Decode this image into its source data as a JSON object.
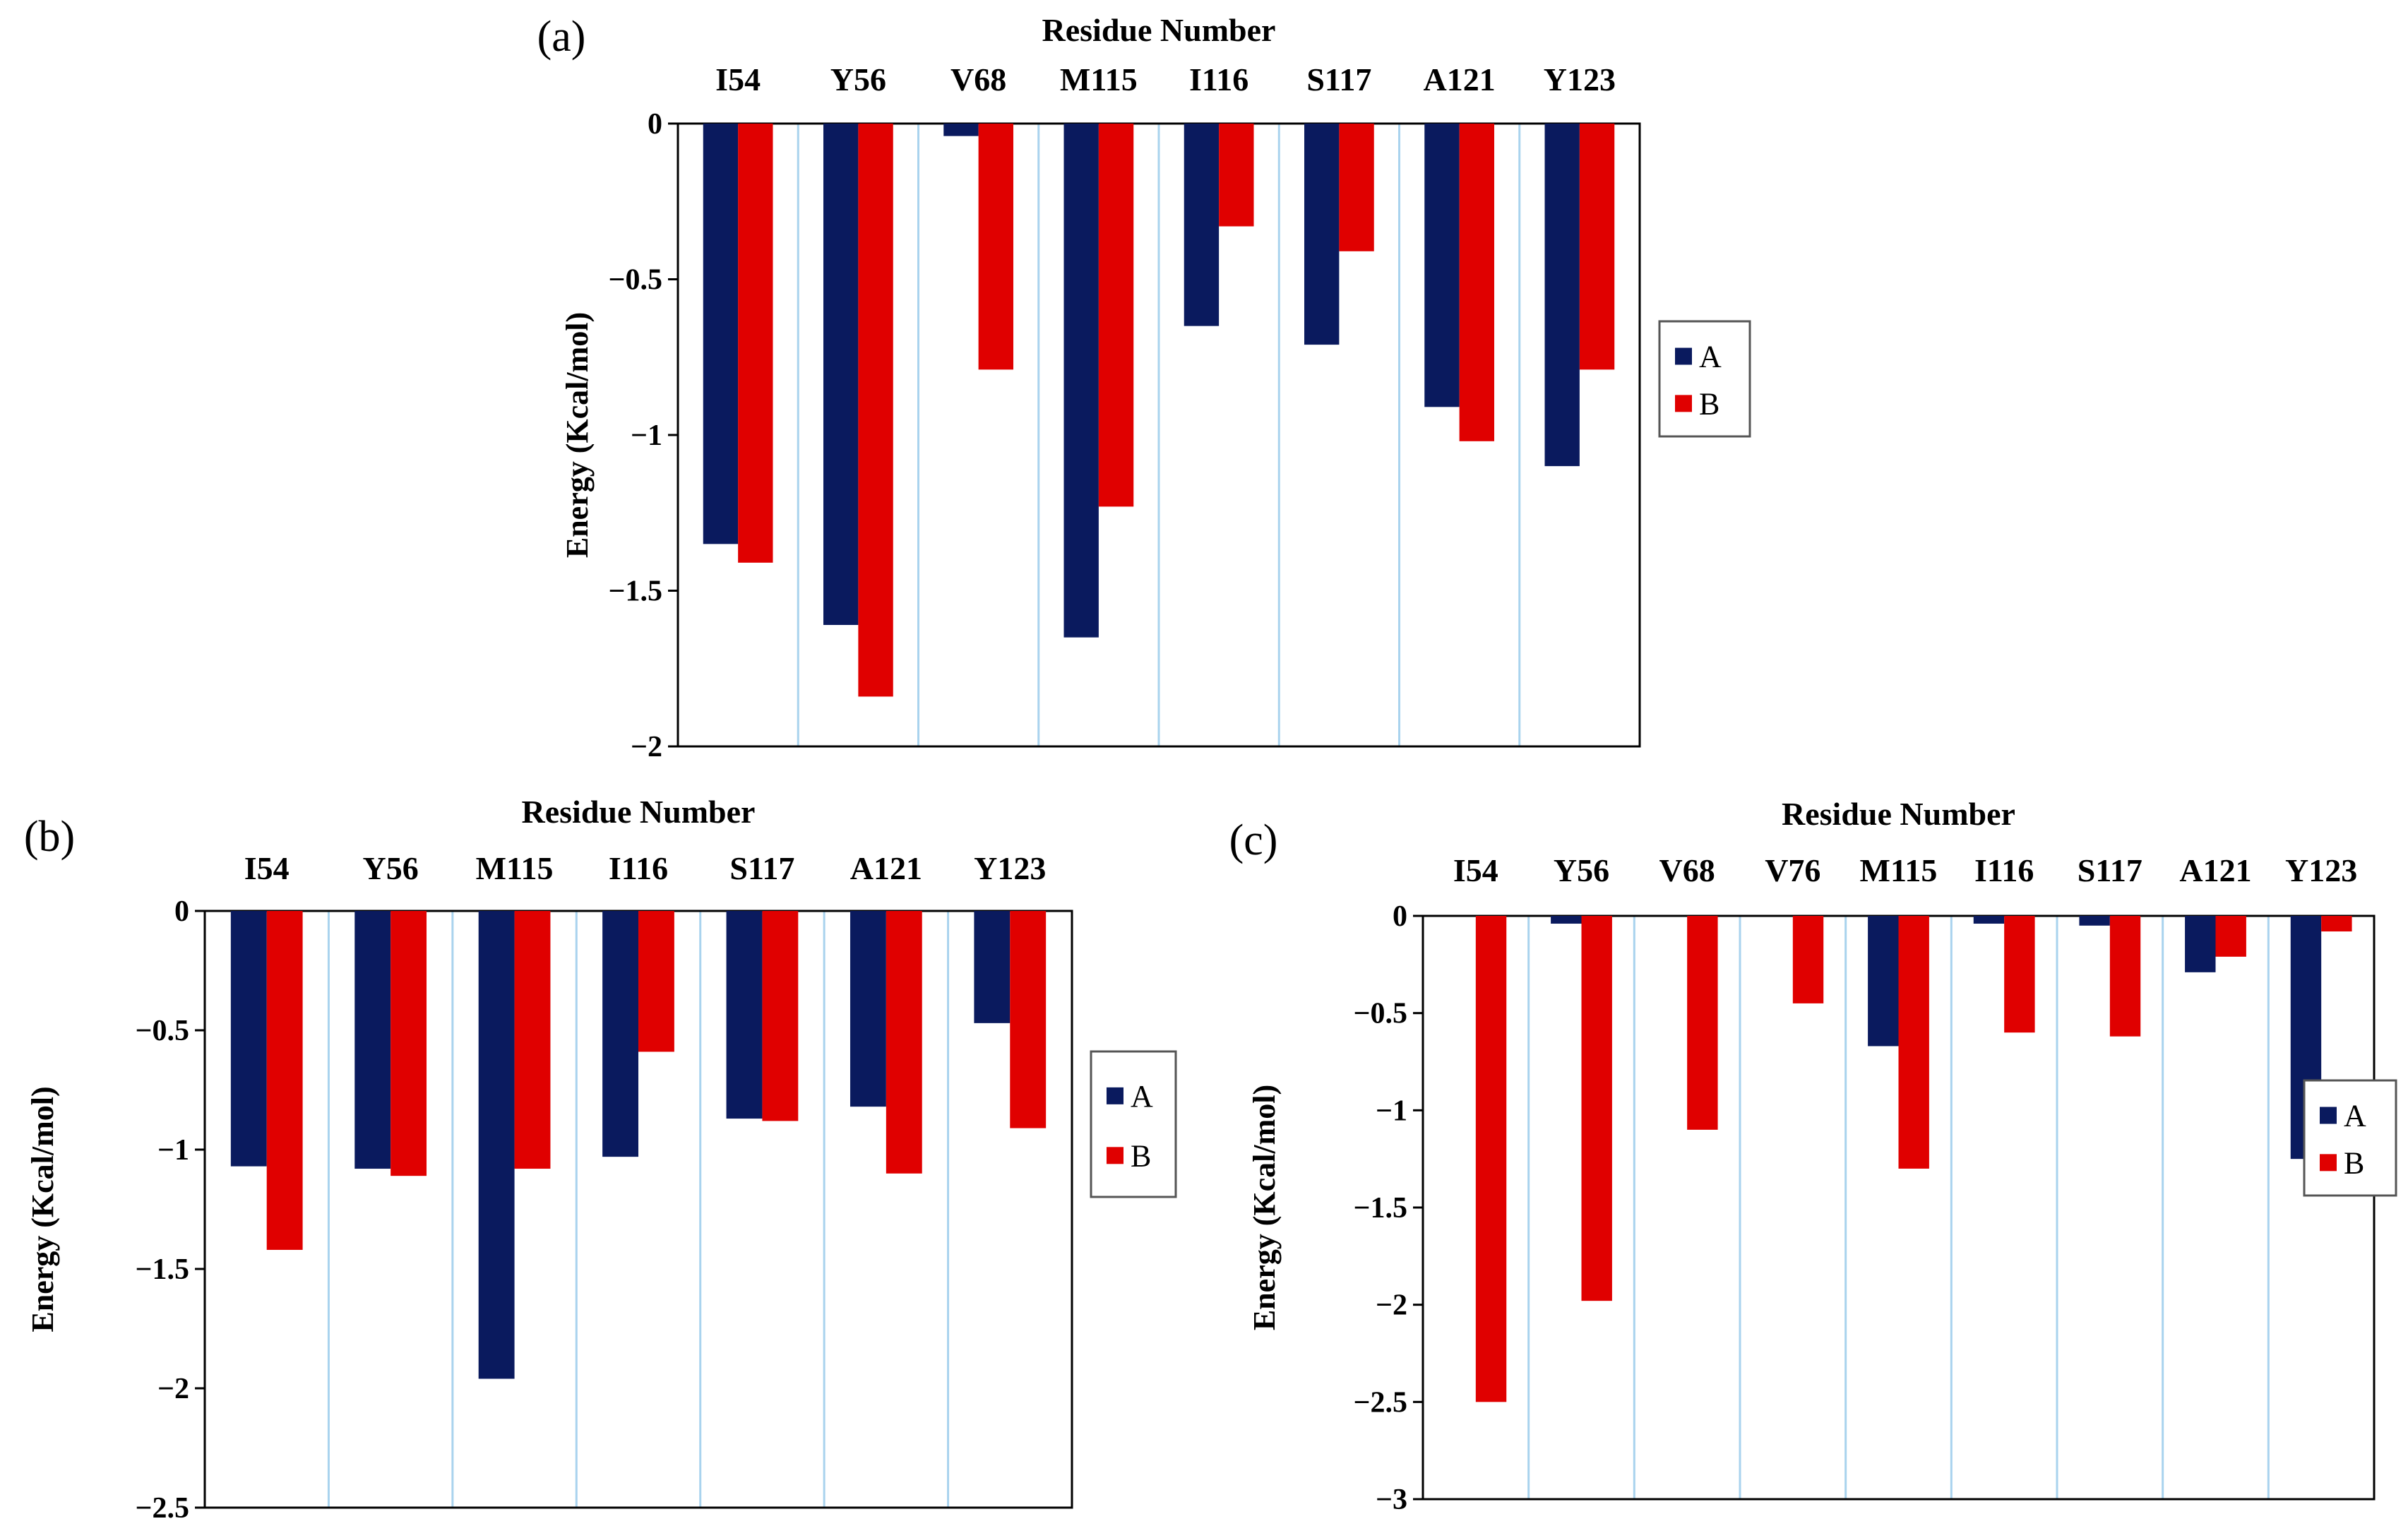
{
  "colors": {
    "A": "#0a1a5e",
    "B": "#e00000",
    "grid": "#a9d3ee",
    "axis": "#000000"
  },
  "chart_data": [
    {
      "type": "bar",
      "panel_label": "(a)",
      "title": "Residue Number",
      "ylabel": "Energy (Kcal/mol)",
      "ylim": [
        -2,
        0
      ],
      "yticks": [
        0,
        -0.5,
        -1,
        -1.5,
        -2
      ],
      "ytick_labels": [
        "0",
        "−0.5",
        "−1",
        "−1.5",
        "−2"
      ],
      "x_axis_position": "top",
      "legend_position": "right",
      "grid": "vertical",
      "categories": [
        "I54",
        "Y56",
        "V68",
        "M115",
        "I116",
        "S117",
        "A121",
        "Y123"
      ],
      "series": [
        {
          "name": "A",
          "values": [
            -1.35,
            -1.61,
            -0.04,
            -1.65,
            -0.65,
            -0.71,
            -0.91,
            -1.1
          ]
        },
        {
          "name": "B",
          "values": [
            -1.41,
            -1.84,
            -0.79,
            -1.23,
            -0.33,
            -0.41,
            -1.02,
            -0.79
          ]
        }
      ]
    },
    {
      "type": "bar",
      "panel_label": "(b)",
      "title": "Residue Number",
      "ylabel": "Energy (Kcal/mol)",
      "ylim": [
        -2.5,
        0
      ],
      "yticks": [
        0,
        -0.5,
        -1,
        -1.5,
        -2,
        -2.5
      ],
      "ytick_labels": [
        "0",
        "−0.5",
        "−1",
        "−1.5",
        "−2",
        "−2.5"
      ],
      "x_axis_position": "top",
      "legend_position": "right",
      "grid": "vertical",
      "categories": [
        "I54",
        "Y56",
        "M115",
        "I116",
        "S117",
        "A121",
        "Y123"
      ],
      "series": [
        {
          "name": "A",
          "values": [
            -1.07,
            -1.08,
            -1.96,
            -1.03,
            -0.87,
            -0.82,
            -0.47
          ]
        },
        {
          "name": "B",
          "values": [
            -1.42,
            -1.11,
            -1.08,
            -0.59,
            -0.88,
            -1.1,
            -0.91
          ]
        }
      ]
    },
    {
      "type": "bar",
      "panel_label": "(c)",
      "title": "Residue Number",
      "ylabel": "Energy (Kcal/mol)",
      "ylim": [
        -3,
        0
      ],
      "yticks": [
        0,
        -0.5,
        -1,
        -1.5,
        -2,
        -2.5,
        -3
      ],
      "ytick_labels": [
        "0",
        "−0.5",
        "−1",
        "−1.5",
        "−2",
        "−2.5",
        "−3"
      ],
      "x_axis_position": "top",
      "legend_position": "right",
      "grid": "vertical",
      "categories": [
        "I54",
        "Y56",
        "V68",
        "V76",
        "M115",
        "I116",
        "S117",
        "A121",
        "Y123"
      ],
      "series": [
        {
          "name": "A",
          "values": [
            0.0,
            -0.04,
            0.0,
            0.0,
            -0.67,
            -0.04,
            -0.05,
            -0.29,
            -1.25
          ]
        },
        {
          "name": "B",
          "values": [
            -2.5,
            -1.98,
            -1.1,
            -0.45,
            -1.3,
            -0.6,
            -0.62,
            -0.21,
            -0.08
          ]
        }
      ]
    }
  ]
}
